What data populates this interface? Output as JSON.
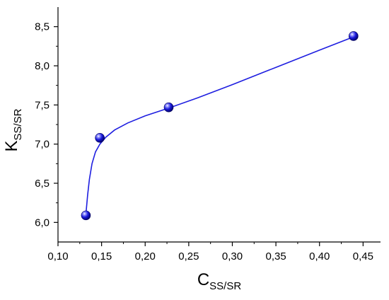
{
  "chart_data": {
    "type": "scatter",
    "xlabel": {
      "main": "C",
      "sub": "SS/SR"
    },
    "ylabel": {
      "main": "K",
      "sub": "SS/SR"
    },
    "xlim": [
      0.1,
      0.47
    ],
    "ylim": [
      5.75,
      8.75
    ],
    "x_ticks": [
      {
        "value": 0.1,
        "label": "0,10"
      },
      {
        "value": 0.15,
        "label": "0,15"
      },
      {
        "value": 0.2,
        "label": "0,20"
      },
      {
        "value": 0.25,
        "label": "0,25"
      },
      {
        "value": 0.3,
        "label": "0,30"
      },
      {
        "value": 0.35,
        "label": "0,35"
      },
      {
        "value": 0.4,
        "label": "0,40"
      },
      {
        "value": 0.45,
        "label": "0,45"
      }
    ],
    "y_ticks": [
      {
        "value": 6.0,
        "label": "6,0"
      },
      {
        "value": 6.5,
        "label": "6,5"
      },
      {
        "value": 7.0,
        "label": "7,0"
      },
      {
        "value": 7.5,
        "label": "7,5"
      },
      {
        "value": 8.0,
        "label": "8,0"
      },
      {
        "value": 8.5,
        "label": "8,5"
      }
    ],
    "points": [
      {
        "x": 0.132,
        "y": 6.09
      },
      {
        "x": 0.148,
        "y": 7.08
      },
      {
        "x": 0.227,
        "y": 7.47
      },
      {
        "x": 0.439,
        "y": 8.38
      }
    ],
    "fit_curve": [
      [
        0.132,
        6.1
      ],
      [
        0.134,
        6.35
      ],
      [
        0.136,
        6.55
      ],
      [
        0.139,
        6.75
      ],
      [
        0.143,
        6.9
      ],
      [
        0.148,
        7.0
      ],
      [
        0.155,
        7.09
      ],
      [
        0.165,
        7.18
      ],
      [
        0.18,
        7.27
      ],
      [
        0.2,
        7.36
      ],
      [
        0.227,
        7.46
      ],
      [
        0.26,
        7.59
      ],
      [
        0.3,
        7.76
      ],
      [
        0.35,
        7.98
      ],
      [
        0.4,
        8.2
      ],
      [
        0.439,
        8.37
      ]
    ],
    "marker_color": "#1a1adb",
    "line_color": "#1e1ee0",
    "grid": false
  }
}
